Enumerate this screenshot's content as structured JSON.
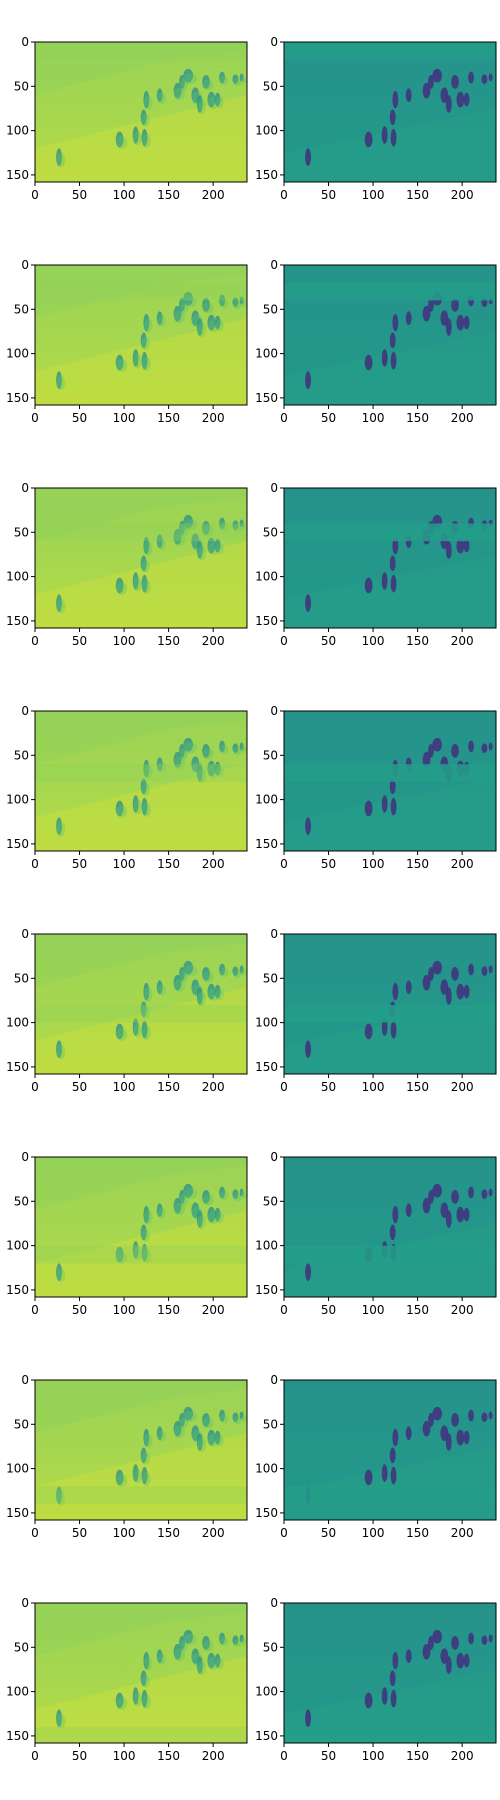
{
  "figure": {
    "layout": "8 rows x 2 columns of image panels (viridis colormap)",
    "axes": {
      "x_ticks": [
        0,
        50,
        100,
        150,
        200
      ],
      "y_ticks": [
        0,
        50,
        100,
        150
      ],
      "xlim": [
        0,
        238
      ],
      "ylim": [
        158,
        0
      ]
    },
    "colors": {
      "left_background": "#a7d74f",
      "left_band": "#8fd15a",
      "left_dark": "#2a8f8e",
      "right_background": "#22998a",
      "right_band": "#239f89",
      "right_dark": "#40357e",
      "text": "#000000"
    },
    "panels": [
      {
        "row": 1,
        "band_row": 0
      },
      {
        "row": 2,
        "band_row": 20
      },
      {
        "row": 3,
        "band_row": 40
      },
      {
        "row": 4,
        "band_row": 60
      },
      {
        "row": 5,
        "band_row": 80
      },
      {
        "row": 6,
        "band_row": 100
      },
      {
        "row": 7,
        "band_row": 120
      },
      {
        "row": 8,
        "band_row": 140
      }
    ]
  }
}
